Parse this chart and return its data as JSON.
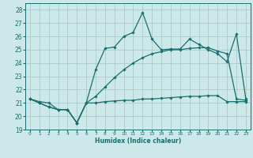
{
  "title": "",
  "xlabel": "Humidex (Indice chaleur)",
  "bg_color": "#cce8e8",
  "grid_color": "#aacccc",
  "line_color": "#1a6e6e",
  "xlim": [
    -0.5,
    23.5
  ],
  "ylim": [
    19,
    28.5
  ],
  "xticks": [
    0,
    1,
    2,
    3,
    4,
    5,
    6,
    7,
    8,
    9,
    10,
    11,
    12,
    13,
    14,
    15,
    16,
    17,
    18,
    19,
    20,
    21,
    22,
    23
  ],
  "yticks": [
    19,
    20,
    21,
    22,
    23,
    24,
    25,
    26,
    27,
    28
  ],
  "line1_x": [
    0,
    1,
    2,
    3,
    4,
    5,
    6,
    7,
    8,
    9,
    10,
    11,
    12,
    13,
    14,
    15,
    16,
    17,
    18,
    19,
    20,
    21,
    22,
    23
  ],
  "line1_y": [
    21.3,
    21.0,
    20.7,
    20.5,
    20.5,
    19.5,
    21.0,
    21.0,
    21.1,
    21.15,
    21.2,
    21.2,
    21.3,
    21.3,
    21.35,
    21.4,
    21.45,
    21.5,
    21.5,
    21.55,
    21.55,
    21.1,
    21.1,
    21.1
  ],
  "line2_x": [
    0,
    1,
    2,
    3,
    4,
    5,
    6,
    7,
    8,
    9,
    10,
    11,
    12,
    13,
    14,
    15,
    16,
    17,
    18,
    19,
    20,
    21,
    22,
    23
  ],
  "line2_y": [
    21.3,
    21.0,
    20.7,
    20.5,
    20.5,
    19.5,
    21.0,
    23.5,
    25.1,
    25.2,
    26.0,
    26.3,
    27.8,
    25.8,
    25.0,
    25.05,
    25.05,
    25.8,
    25.4,
    25.0,
    24.7,
    24.1,
    26.2,
    21.3
  ],
  "line3_x": [
    0,
    1,
    2,
    3,
    4,
    5,
    6,
    7,
    8,
    9,
    10,
    11,
    12,
    13,
    14,
    15,
    16,
    17,
    18,
    19,
    20,
    21,
    22,
    23
  ],
  "line3_y": [
    21.3,
    21.1,
    21.0,
    20.5,
    20.5,
    19.5,
    21.0,
    21.5,
    22.2,
    22.9,
    23.5,
    24.0,
    24.4,
    24.7,
    24.85,
    25.0,
    25.0,
    25.1,
    25.15,
    25.15,
    24.9,
    24.7,
    21.3,
    21.2
  ]
}
